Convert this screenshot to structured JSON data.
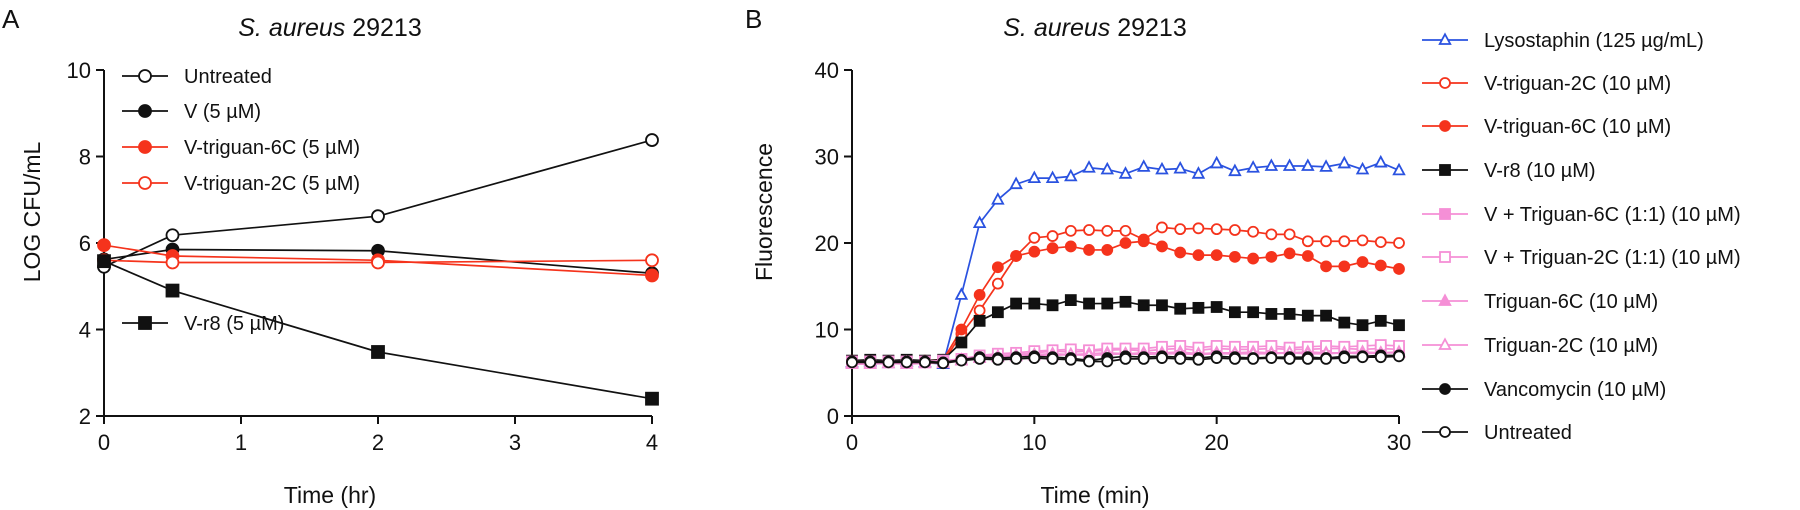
{
  "colors": {
    "black": "#111111",
    "red": "#f5331c",
    "blue": "#2a52e0",
    "pink": "#f58fd6"
  },
  "chart_data": [
    {
      "type": "line",
      "panel_label": "A",
      "title_italic": "S. aureus",
      "title_rest": " 29213",
      "xlabel": "Time (hr)",
      "ylabel": "LOG CFU/mL",
      "xlim": [
        0,
        4
      ],
      "ylim": [
        2,
        10
      ],
      "x_ticks": [
        "0",
        "1",
        "2",
        "3",
        "4"
      ],
      "y_ticks": [
        "2",
        "4",
        "6",
        "8",
        "10"
      ],
      "x": [
        0,
        0.5,
        2,
        4
      ],
      "series": [
        {
          "name": "Untreated",
          "color": "black",
          "marker": "circle-open",
          "values": [
            5.45,
            6.18,
            6.62,
            8.38
          ]
        },
        {
          "name": "V (5 µM)",
          "color": "black",
          "marker": "circle-filled",
          "values": [
            5.62,
            5.85,
            5.82,
            5.3
          ]
        },
        {
          "name": "V-triguan-6C (5 µM)",
          "color": "red",
          "marker": "circle-filled",
          "values": [
            5.95,
            5.7,
            5.6,
            5.25
          ]
        },
        {
          "name": "V-triguan-2C (5 µM)",
          "color": "red",
          "marker": "circle-open",
          "values": [
            5.6,
            5.55,
            5.55,
            5.6
          ]
        },
        {
          "name": "V-r8 (5 µM)",
          "color": "black",
          "marker": "square-filled",
          "values": [
            5.58,
            4.9,
            3.48,
            2.4
          ]
        }
      ]
    },
    {
      "type": "line",
      "panel_label": "B",
      "title_italic": "S. aureus",
      "title_rest": " 29213",
      "xlabel": "Time (min)",
      "ylabel": "Fluorescence",
      "xlim": [
        0,
        30
      ],
      "ylim": [
        0,
        40
      ],
      "x_ticks": [
        "0",
        "10",
        "20",
        "30"
      ],
      "y_ticks": [
        "0",
        "10",
        "20",
        "30",
        "40"
      ],
      "x": [
        0,
        1,
        2,
        3,
        4,
        5,
        6,
        7,
        8,
        9,
        10,
        11,
        12,
        13,
        14,
        15,
        16,
        17,
        18,
        19,
        20,
        21,
        22,
        23,
        24,
        25,
        26,
        27,
        28,
        29,
        30
      ],
      "series": [
        {
          "name": "Lysostaphin (125 µg/mL)",
          "color": "blue",
          "marker": "triangle-open",
          "values": [
            6.2,
            6.3,
            6.1,
            6.3,
            6.2,
            6.0,
            14.0,
            22.3,
            25.0,
            26.8,
            27.5,
            27.5,
            27.7,
            28.7,
            28.5,
            28.0,
            28.8,
            28.5,
            28.6,
            28.0,
            29.2,
            28.3,
            28.7,
            28.9,
            28.9,
            28.9,
            28.8,
            29.2,
            28.5,
            29.3,
            28.4
          ]
        },
        {
          "name": "V-triguan-2C (10 µM)",
          "color": "red",
          "marker": "circle-open",
          "values": [
            6.3,
            6.3,
            6.2,
            6.2,
            6.3,
            6.2,
            9.5,
            12.2,
            15.3,
            18.5,
            20.6,
            20.8,
            21.4,
            21.5,
            21.4,
            21.4,
            20.4,
            21.8,
            21.6,
            21.7,
            21.6,
            21.5,
            21.3,
            21.0,
            21.0,
            20.2,
            20.2,
            20.2,
            20.3,
            20.1,
            20.0
          ]
        },
        {
          "name": "V-triguan-6C (10 µM)",
          "color": "red",
          "marker": "circle-filled",
          "values": [
            6.4,
            6.4,
            6.3,
            6.4,
            6.4,
            6.5,
            10.0,
            14.0,
            17.2,
            18.5,
            19.0,
            19.4,
            19.6,
            19.2,
            19.2,
            20.0,
            20.2,
            19.6,
            18.9,
            18.6,
            18.6,
            18.4,
            18.2,
            18.4,
            18.8,
            18.5,
            17.3,
            17.3,
            17.8,
            17.4,
            17.0
          ]
        },
        {
          "name": "V-r8 (10 µM)",
          "color": "black",
          "marker": "square-filled",
          "values": [
            6.4,
            6.5,
            6.4,
            6.5,
            6.4,
            6.5,
            8.5,
            11.0,
            12.0,
            13.0,
            13.0,
            12.8,
            13.4,
            13.0,
            13.0,
            13.2,
            12.8,
            12.8,
            12.4,
            12.5,
            12.6,
            12.0,
            12.0,
            11.8,
            11.8,
            11.6,
            11.6,
            10.8,
            10.5,
            11.0,
            10.5
          ]
        },
        {
          "name": "V + Triguan-6C (1:1) (10 µM)",
          "color": "pink",
          "marker": "square-filled",
          "values": [
            6.3,
            6.3,
            6.3,
            6.3,
            6.3,
            6.4,
            6.6,
            6.9,
            7.0,
            7.1,
            7.3,
            7.5,
            7.4,
            7.5,
            7.6,
            7.7,
            7.5,
            7.7,
            7.8,
            7.6,
            7.8,
            7.7,
            7.7,
            7.8,
            7.7,
            7.7,
            7.8,
            7.8,
            7.7,
            7.8,
            7.7
          ]
        },
        {
          "name": "V + Triguan-2C (1:1) (10 µM)",
          "color": "pink",
          "marker": "square-open",
          "values": [
            6.2,
            6.2,
            6.2,
            6.2,
            6.2,
            6.3,
            6.6,
            7.0,
            7.2,
            7.3,
            7.5,
            7.6,
            7.7,
            7.6,
            7.8,
            7.8,
            7.8,
            8.0,
            8.1,
            7.9,
            8.1,
            8.0,
            8.0,
            8.1,
            7.9,
            8.0,
            8.1,
            8.0,
            8.1,
            8.2,
            8.1
          ]
        },
        {
          "name": "Triguan-6C (10 µM)",
          "color": "pink",
          "marker": "triangle-filled",
          "values": [
            6.1,
            6.1,
            6.1,
            6.2,
            6.1,
            6.2,
            6.5,
            6.8,
            6.9,
            7.0,
            7.1,
            7.2,
            7.1,
            7.2,
            7.3,
            7.2,
            7.3,
            7.3,
            7.4,
            7.2,
            7.3,
            7.3,
            7.4,
            7.3,
            7.3,
            7.4,
            7.3,
            7.3,
            7.4,
            7.3,
            7.4
          ]
        },
        {
          "name": "Triguan-2C (10 µM)",
          "color": "pink",
          "marker": "triangle-open",
          "values": [
            6.0,
            6.0,
            6.1,
            6.0,
            6.1,
            6.1,
            6.4,
            6.7,
            6.8,
            6.9,
            7.0,
            7.0,
            7.1,
            7.0,
            7.1,
            7.2,
            7.1,
            7.2,
            7.2,
            7.1,
            7.2,
            7.2,
            7.2,
            7.2,
            7.3,
            7.2,
            7.2,
            7.3,
            7.2,
            7.3,
            7.3
          ]
        },
        {
          "name": "Vancomycin (10 µM)",
          "color": "black",
          "marker": "circle-filled",
          "values": [
            6.3,
            6.3,
            6.3,
            6.3,
            6.3,
            6.2,
            6.5,
            6.8,
            6.7,
            6.8,
            6.9,
            6.8,
            6.7,
            6.4,
            6.7,
            6.9,
            6.8,
            6.9,
            6.8,
            6.7,
            6.9,
            6.8,
            6.7,
            6.8,
            6.8,
            6.8,
            6.7,
            6.9,
            6.9,
            7.0,
            7.0
          ]
        },
        {
          "name": "Untreated",
          "color": "black",
          "marker": "circle-open",
          "values": [
            6.2,
            6.2,
            6.2,
            6.2,
            6.2,
            6.1,
            6.4,
            6.6,
            6.5,
            6.6,
            6.7,
            6.6,
            6.5,
            6.3,
            6.3,
            6.6,
            6.6,
            6.7,
            6.6,
            6.5,
            6.7,
            6.6,
            6.6,
            6.7,
            6.6,
            6.6,
            6.6,
            6.7,
            6.8,
            6.8,
            6.9
          ]
        }
      ]
    }
  ]
}
